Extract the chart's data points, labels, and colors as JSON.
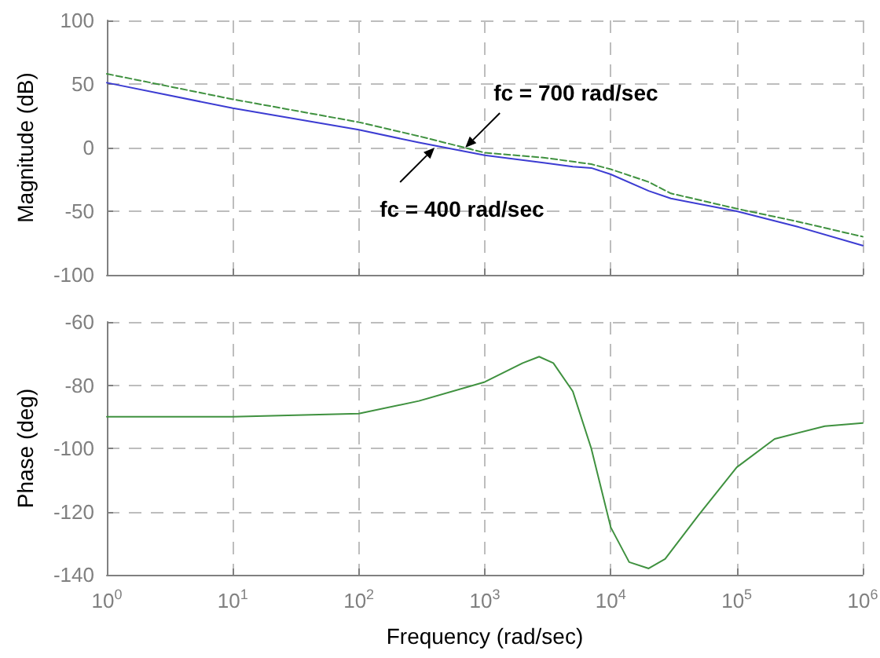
{
  "chart_data": [
    {
      "type": "line",
      "ylabel": "Magnitude (dB)",
      "x": [
        1,
        10,
        100,
        300,
        1000,
        3000,
        5000,
        7000,
        10000,
        20000,
        30000,
        100000,
        300000,
        1000000
      ],
      "xlim": [
        1,
        1000000
      ],
      "xticks": [
        {
          "value": 1,
          "label": null
        },
        {
          "value": 10,
          "label": null
        },
        {
          "value": 100,
          "label": null
        },
        {
          "value": 1000,
          "label": null
        },
        {
          "value": 10000,
          "label": null
        },
        {
          "value": 100000,
          "label": null
        },
        {
          "value": 1000000,
          "label": null
        }
      ],
      "ylim": [
        -100,
        100
      ],
      "yticks": [
        -100,
        -50,
        0,
        50,
        100
      ],
      "log": "x",
      "grid": true,
      "tick_labels": "y",
      "marker": "none",
      "series": [
        {
          "color": "#3c3cd2",
          "line_style": "solid",
          "values": [
            51,
            31,
            14,
            4,
            -6,
            -12,
            -15,
            -16,
            -21,
            -34,
            -40,
            -50,
            -62,
            -77
          ]
        },
        {
          "color": "#3f913f",
          "line_style": "dashed",
          "values": [
            58,
            38,
            20,
            9,
            -4,
            -8,
            -11,
            -13,
            -17,
            -27,
            -36,
            -48,
            -58,
            -70
          ]
        }
      ],
      "annotations": [
        {
          "text": "fc = 700 rad/sec",
          "x": 700,
          "y": 0
        },
        {
          "text": "fc = 400 rad/sec",
          "x": 400,
          "y": 0
        }
      ]
    },
    {
      "type": "line",
      "ylabel": "Phase (deg)",
      "xlabel": "Frequency (rad/sec)",
      "x": [
        1,
        10,
        100,
        300,
        1000,
        2000,
        2700,
        3500,
        5000,
        7000,
        10000,
        14000,
        20000,
        27000,
        50000,
        100000,
        200000,
        500000,
        1000000
      ],
      "xlim": [
        1,
        1000000
      ],
      "xticks": [
        {
          "value": 1,
          "label": "10$^{0}$"
        },
        {
          "value": 10,
          "label": "10$^{1}$"
        },
        {
          "value": 100,
          "label": "10$^{2}$"
        },
        {
          "value": 1000,
          "label": "10$^{3}$"
        },
        {
          "value": 10000,
          "label": "10$^{4}$"
        },
        {
          "value": 100000,
          "label": "10$^{5}$"
        },
        {
          "value": 1000000,
          "label": "10$^{6}$"
        }
      ],
      "ylim": [
        -140,
        -60
      ],
      "yticks": [
        -140,
        -120,
        -100,
        -80,
        -60
      ],
      "log": "x",
      "grid": true,
      "marker": "none",
      "series": [
        {
          "color": "#3f913f",
          "line_style": "solid",
          "values": [
            -90,
            -90,
            -89,
            -85,
            -79,
            -73,
            -71,
            -73,
            -82,
            -100,
            -125,
            -136,
            -138,
            -135,
            -121,
            -106,
            -97,
            -93,
            -92
          ]
        }
      ]
    }
  ]
}
